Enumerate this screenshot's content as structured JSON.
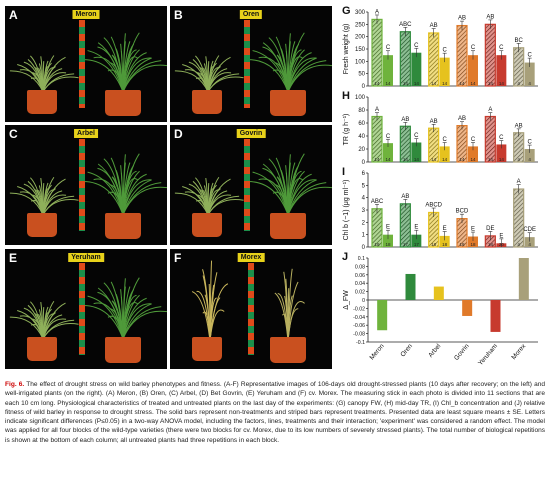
{
  "photos": [
    {
      "letter": "A",
      "name": "Meron"
    },
    {
      "letter": "B",
      "name": "Oren"
    },
    {
      "letter": "C",
      "name": "Arbel"
    },
    {
      "letter": "D",
      "name": "Govrin"
    },
    {
      "letter": "E",
      "name": "Yeruham"
    },
    {
      "letter": "F",
      "name": "Morex"
    }
  ],
  "panel_letters": {
    "G": "G",
    "H": "H",
    "I": "I",
    "J": "J"
  },
  "colors": {
    "Meron": "#6fb33c",
    "Oren": "#2f8a3c",
    "Arbel": "#e6c21e",
    "Govrin": "#e07a2a",
    "Yeruham": "#c73a2e",
    "Morex": "#a8a07a"
  },
  "chart_data": [
    {
      "panel": "G",
      "type": "bar",
      "ylabel": "Fresh weight (g)",
      "ylim": [
        0,
        300
      ],
      "yticks": [
        "0",
        "50",
        "100",
        "150",
        "200",
        "250",
        "300"
      ],
      "categories": [
        "Meron",
        "Oren",
        "Arbel",
        "Govrin",
        "Yeruham",
        "Morex"
      ],
      "series": [
        {
          "values": [
            270,
            220,
            215,
            245,
            250,
            155
          ]
        },
        {
          "values": [
            125,
            135,
            115,
            125,
            125,
            95
          ]
        }
      ],
      "letters_control": [
        "A",
        "ABC",
        "AB",
        "AB",
        "AB",
        "BC"
      ],
      "letters_stress": [
        "C",
        "C",
        "C",
        "C",
        "C",
        "C"
      ],
      "n": [
        [
          "14",
          "14"
        ],
        [
          "14",
          "14"
        ],
        [
          "14",
          "14"
        ],
        [
          "14",
          "14"
        ],
        [
          "14",
          "14"
        ],
        [
          "4",
          "4"
        ]
      ]
    },
    {
      "panel": "H",
      "type": "bar",
      "ylabel": "TR (g h⁻¹)",
      "ylim": [
        0,
        100
      ],
      "yticks": [
        "0",
        "20",
        "40",
        "60",
        "80",
        "100"
      ],
      "categories": [
        "Meron",
        "Oren",
        "Arbel",
        "Govrin",
        "Yeruham",
        "Morex"
      ],
      "series": [
        {
          "values": [
            70,
            55,
            52,
            56,
            70,
            45
          ]
        },
        {
          "values": [
            29,
            30,
            24,
            24,
            27,
            20
          ]
        }
      ],
      "letters_control": [
        "A",
        "AB",
        "AB",
        "AB",
        "A",
        "AB"
      ],
      "letters_stress": [
        "C",
        "C",
        "C",
        "C",
        "C",
        "C"
      ],
      "n": [
        [
          "14",
          "14"
        ],
        [
          "14",
          "14"
        ],
        [
          "14",
          "14"
        ],
        [
          "14",
          "14"
        ],
        [
          "14",
          "14"
        ],
        [
          "4",
          "4"
        ]
      ]
    },
    {
      "panel": "I",
      "type": "bar",
      "ylabel": "Chl b (−1) (μg ml⁻¹)",
      "ylim": [
        0,
        6
      ],
      "yticks": [
        "0",
        "1",
        "2",
        "3",
        "4",
        "5",
        "6"
      ],
      "categories": [
        "Meron",
        "Oren",
        "Arbel",
        "Govrin",
        "Yeruham",
        "Morex"
      ],
      "series": [
        {
          "values": [
            3.1,
            3.5,
            2.8,
            2.3,
            0.9,
            4.7
          ]
        },
        {
          "values": [
            1.0,
            1.0,
            0.9,
            0.85,
            0.3,
            0.8
          ]
        }
      ],
      "letters_control": [
        "ABC",
        "AB",
        "ABCD",
        "BCD",
        "DE",
        "A"
      ],
      "letters_stress": [
        "E",
        "E",
        "E",
        "E",
        "E",
        "CDE"
      ],
      "n": [
        [
          "18",
          "18"
        ],
        [
          "17",
          "17"
        ],
        [
          "18",
          "18"
        ],
        [
          "18",
          "18"
        ],
        [
          "18",
          "20"
        ],
        [
          "4",
          "4"
        ]
      ]
    },
    {
      "panel": "J",
      "type": "bar",
      "ylabel": "Δ_FW",
      "ylim": [
        -0.1,
        0.1
      ],
      "yticks": [
        "-0.1",
        "-0.08",
        "-0.06",
        "-0.04",
        "-0.02",
        "0",
        "0.02",
        "0.04",
        "0.06",
        "0.08",
        "0.1"
      ],
      "categories": [
        "Meron",
        "Oren",
        "Arbel",
        "Govrin",
        "Yeruham",
        "Morex"
      ],
      "values": [
        -0.072,
        0.062,
        0.032,
        -0.038,
        -0.076,
        0.1
      ]
    }
  ],
  "caption": {
    "fig_label": "Fig. 6.",
    "text": " The effect of drought stress on wild barley phenotypes and fitness. (A-F) Representative images of 106-days old drought-stressed plants (10 days after recovery; on the left) and well-irrigated plants (on the right). (A) Meron, (B) Oren, (C) Arbel, (D) Bet Govrin, (E) Yeruham and (F) cv. Morex. The measuring stick in each photo is divided into 11 sections that are each 10 cm long. Physiological characteristics of treated and untreated plants on the last day of the experiments: (G) canopy FW, (H) mid-day TR, (I) Chl_b concentration and (J) relative fitness of wild barley in response to drought stress. The solid bars represent non-treatments and striped bars represent treatments. Presented data are least square means ± SE. Letters indicate significant differences (P≤0.05) in a two-way ANOVA model, including the factors, lines, treatments and their interaction; 'experiment' was considered a random effect. The model was applied for all four blocks of the wild-type varieties (there were two blocks for cv. Morex, due to its low numbers of severely stressed plants). The total number of biological repetitions is shown at the bottom of each column; all untreated plants had three repetitions in each block."
  }
}
